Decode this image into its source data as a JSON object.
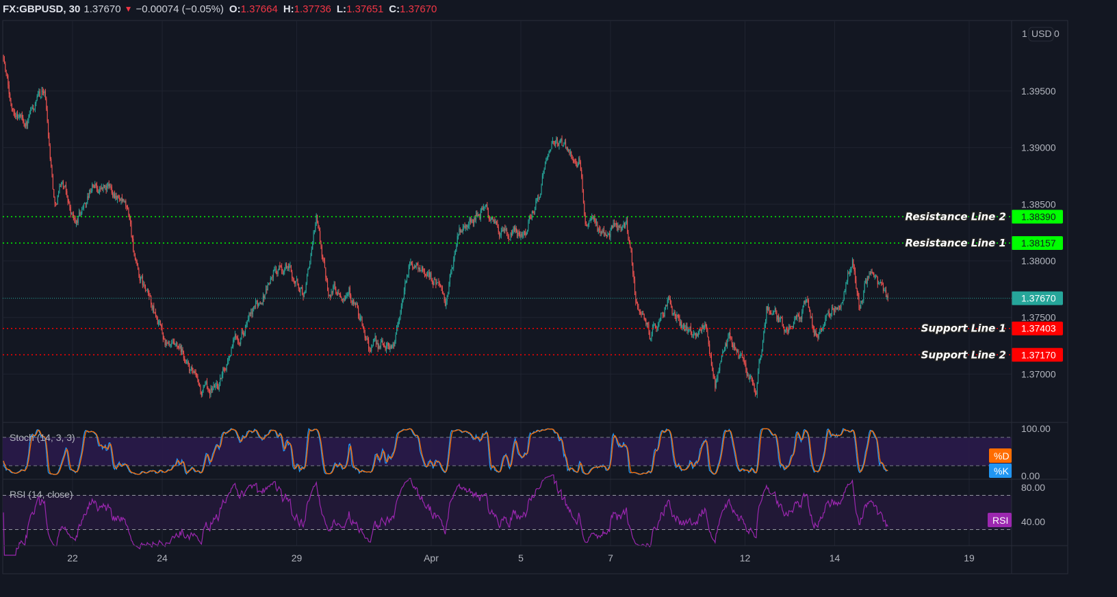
{
  "header": {
    "symbol": "FX:GBPUSD, 30",
    "last": "1.37670",
    "change": "−0.00074 (−0.05%)",
    "direction_icon": "triangle-down-icon",
    "o_label": "O:",
    "o": "1.37664",
    "h_label": "H:",
    "h": "1.37736",
    "l_label": "L:",
    "l": "1.37651",
    "c_label": "C:",
    "c": "1.37670"
  },
  "scale_header": {
    "left": "1",
    "currency": "USD",
    "right": "0"
  },
  "colors": {
    "up": "#26a69a",
    "down": "#ef5350",
    "background": "#131722",
    "grid": "#1f2330",
    "resistance": "#00ff00",
    "support": "#ff0000",
    "last_price": "#26a69a",
    "stoch_k": "#2196f3",
    "stoch_d": "#ff6d00",
    "rsi": "#9c27b0"
  },
  "chart_data": {
    "type": "candlestick",
    "interval": "30",
    "price_ticks": [
      "1.39500",
      "1.39000",
      "1.38500",
      "1.38000",
      "1.37500",
      "1.37000"
    ],
    "time_ticks": [
      {
        "label": "22",
        "date": "Mar 22"
      },
      {
        "label": "24",
        "date": "Mar 24"
      },
      {
        "label": "29",
        "date": "Mar 29"
      },
      {
        "label": "Apr",
        "date": "Apr 1"
      },
      {
        "label": "5",
        "date": "Apr 5"
      },
      {
        "label": "7",
        "date": "Apr 7"
      },
      {
        "label": "12",
        "date": "Apr 12"
      },
      {
        "label": "14",
        "date": "Apr 14"
      },
      {
        "label": "19",
        "date": "Apr 19"
      }
    ],
    "close_path": [
      [
        "Mar 18 11:00",
        1.3982
      ],
      [
        "Mar 18 14:30",
        1.394
      ],
      [
        "Mar 18 23:30",
        1.3922
      ],
      [
        "Mar 19 09:00",
        1.3952
      ],
      [
        "Mar 19 14:30",
        1.3849
      ],
      [
        "Mar 19 18:00",
        1.3873
      ],
      [
        "Mar 22 01:30",
        1.3831
      ],
      [
        "Mar 22 10:30",
        1.3867
      ],
      [
        "Mar 22 23:30",
        1.3861
      ],
      [
        "Mar 23 06:30",
        1.3837
      ],
      [
        "Mar 23 10:30",
        1.3789
      ],
      [
        "Mar 23 17:30",
        1.3764
      ],
      [
        "Mar 24 03:00",
        1.3722
      ],
      [
        "Mar 24 10:30",
        1.3716
      ],
      [
        "Mar 24 21:00",
        1.3683
      ],
      [
        "Mar 25 06:30",
        1.3692
      ],
      [
        "Mar 25 14:00",
        1.3728
      ],
      [
        "Mar 26 00:30",
        1.3752
      ],
      [
        "Mar 26 11:30",
        1.3789
      ],
      [
        "Mar 26 19:00",
        1.3795
      ],
      [
        "Mar 29 04:00",
        1.377
      ],
      [
        "Mar 29 10:30",
        1.3837
      ],
      [
        "Mar 29 17:00",
        1.3776
      ],
      [
        "Mar 30 04:00",
        1.3776
      ],
      [
        "Mar 30 15:00",
        1.3722
      ],
      [
        "Mar 31 04:00",
        1.3728
      ],
      [
        "Mar 31 13:00",
        1.3801
      ],
      [
        "Apr 1 03:30",
        1.3782
      ],
      [
        "Apr 1 07:30",
        1.3758
      ],
      [
        "Apr 1 14:30",
        1.3825
      ],
      [
        "Apr 2 03:30",
        1.3846
      ],
      [
        "Apr 2 16:30",
        1.3819
      ],
      [
        "Apr 5 03:30",
        1.3831
      ],
      [
        "Apr 5 10:30",
        1.3867
      ],
      [
        "Apr 5 16:00",
        1.3906
      ],
      [
        "Apr 6 01:30",
        1.3897
      ],
      [
        "Apr 6 07:00",
        1.3891
      ],
      [
        "Apr 6 10:30",
        1.3837
      ],
      [
        "Apr 6 17:30",
        1.3825
      ],
      [
        "Apr 7 08:30",
        1.3831
      ],
      [
        "Apr 7 14:00",
        1.3764
      ],
      [
        "Apr 7 21:00",
        1.3734
      ],
      [
        "Apr 8 06:30",
        1.3764
      ],
      [
        "Apr 8 15:30",
        1.374
      ],
      [
        "Apr 9 02:30",
        1.374
      ],
      [
        "Apr 9 08:00",
        1.3692
      ],
      [
        "Apr 9 15:30",
        1.3734
      ],
      [
        "Apr 12 00:30",
        1.3704
      ],
      [
        "Apr 12 06:00",
        1.368
      ],
      [
        "Apr 12 11:30",
        1.3758
      ],
      [
        "Apr 12 22:30",
        1.374
      ],
      [
        "Apr 13 09:30",
        1.3764
      ],
      [
        "Apr 13 13:00",
        1.3734
      ],
      [
        "Apr 14 04:00",
        1.377
      ],
      [
        "Apr 14 09:30",
        1.3801
      ],
      [
        "Apr 14 13:00",
        1.3758
      ],
      [
        "Apr 14 18:30",
        1.3789
      ],
      [
        "Apr 15 04:30",
        1.3767
      ]
    ],
    "last_price": {
      "value": 1.3767,
      "label": "1.37670"
    },
    "horizontal_lines": [
      {
        "name": "Resistance Line 2",
        "value": 1.3839,
        "label": "1.38390",
        "kind": "resistance"
      },
      {
        "name": "Resistance Line 1",
        "value": 1.38157,
        "label": "1.38157",
        "kind": "resistance"
      },
      {
        "name": "Support Line 1",
        "value": 1.37403,
        "label": "1.37403",
        "kind": "support"
      },
      {
        "name": "Support Line 2",
        "value": 1.3717,
        "label": "1.37170",
        "kind": "support"
      }
    ],
    "grid": true
  },
  "stoch": {
    "title": "Stoch (14, 3, 3)",
    "ticks": [
      "100.00",
      "0.00"
    ],
    "bands": [
      80,
      20
    ],
    "tag_d": "%D",
    "tag_k": "%K"
  },
  "rsi": {
    "title": "RSI (14, close)",
    "ticks": [
      "80.00",
      "40.00"
    ],
    "bands": [
      70,
      30
    ],
    "tag": "RSI"
  }
}
